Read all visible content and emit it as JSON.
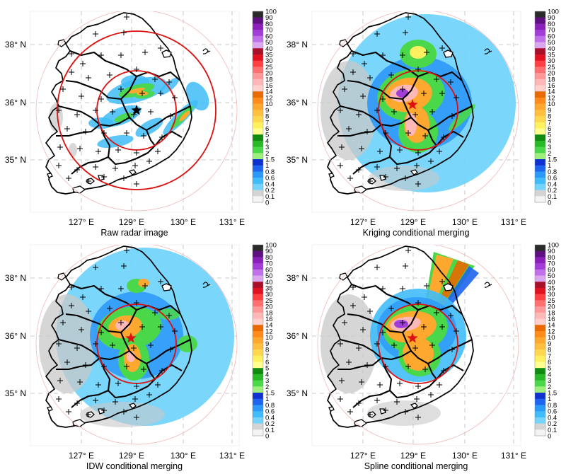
{
  "chart_data": [
    {
      "type": "heatmap",
      "caption": "Raw radar image",
      "xticks": [
        "127° E",
        "129° E",
        "130° E",
        "131° E"
      ],
      "yticks": [
        "38° N",
        "36° N",
        "35° N"
      ],
      "radar_site": {
        "lon": 129.2,
        "lat": 35.85
      }
    },
    {
      "type": "heatmap",
      "caption": "Kriging conditional merging",
      "xticks": [
        "127° E",
        "129° E",
        "130° E",
        "131° E"
      ],
      "yticks": [
        "38° N",
        "36° N",
        "35° N"
      ]
    },
    {
      "type": "heatmap",
      "caption": "IDW conditional merging",
      "xticks": [
        "127° E",
        "129° E",
        "130° E",
        "131° E"
      ],
      "yticks": [
        "38° N",
        "36° N",
        "35° N"
      ]
    },
    {
      "type": "heatmap",
      "caption": "Spline conditional merging",
      "xticks": [
        "127° E",
        "129° E",
        "130° E",
        "131° E"
      ],
      "yticks": [
        "38° N",
        "36° N",
        "35° N"
      ]
    }
  ],
  "colorbar": {
    "labels": [
      "100",
      "90",
      "80",
      "70",
      "60",
      "50",
      "40",
      "35",
      "30",
      "25",
      "20",
      "18",
      "16",
      "14",
      "12",
      "10",
      "9",
      "8",
      "7",
      "6",
      "5",
      "4",
      "3",
      "2",
      "1.5",
      "1",
      "0.8",
      "0.6",
      "0.4",
      "0.2",
      "0.1",
      "0"
    ],
    "colors": [
      "#2b2b2b",
      "#5e1080",
      "#8a20b8",
      "#a23ed8",
      "#c070e8",
      "#dba8f0",
      "#a8102a",
      "#e01222",
      "#ff4040",
      "#ff7070",
      "#ff9898",
      "#ffb8b8",
      "#ffd0cc",
      "#e86a00",
      "#ff8c1a",
      "#ffa830",
      "#ffc040",
      "#ffd850",
      "#fff060",
      "#ffff90",
      "#108a10",
      "#28b828",
      "#4ad84a",
      "#9ef07e",
      "#1030d0",
      "#1e64ee",
      "#2c98f8",
      "#40bcf8",
      "#74d4fc",
      "#d4d4d4",
      "#f4f4f4"
    ]
  },
  "colors": {
    "radar_ring": "#dd1111",
    "gauge_marker": "#000000",
    "radar_site_marker": "#000000",
    "max_marker": "#dd1111"
  }
}
